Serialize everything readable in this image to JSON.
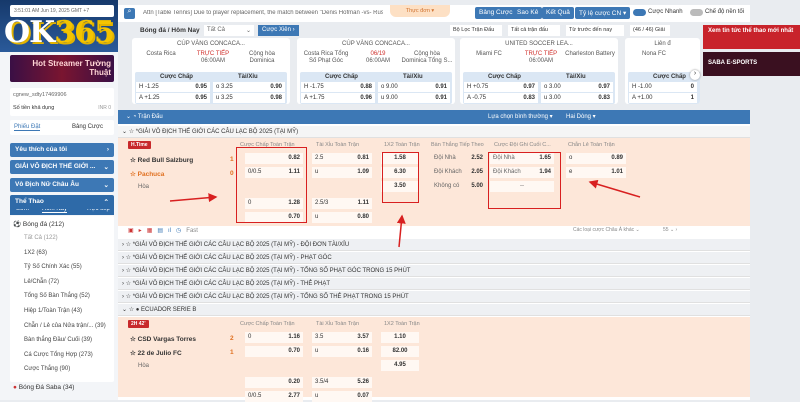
{
  "sidebar": {
    "clock": "3:51:01 AM Jun 19, 2025 GMT +7",
    "logo": "OK365",
    "banner": "Hot Streamer Tường Thuật",
    "username": "cgnew_sdty17469906",
    "balance_label": "Số tiền khả dụng",
    "balance_value": "INR 0",
    "tabs": [
      "Phiếu Đặt",
      "Bảng Cược"
    ],
    "blue_items": [
      "Yêu thích của tôi",
      "GIẢI VÔ ĐỊCH THẾ GIỚI ...",
      "Vô Địch Nữ Châu Âu",
      "Thể Thao"
    ],
    "sport_tabs": [
      "Sớm",
      "Hôm Nay",
      "Trực tiếp"
    ],
    "sport": "Bóng đá (212)",
    "items": [
      "Tất Cả (122)",
      "1X2 (63)",
      "Tỷ Số Chính Xác (55)",
      "Lẻ/Chẵn (72)",
      "Tổng Số Bàn Thắng (52)",
      "Hiệp 1/Toàn Trận (43)",
      "Chẵn / Lẻ của Nửa trận/... (39)",
      "Bàn thắng Đầu/ Cuối (39)",
      "Cá Cược Tổng Hợp (273)",
      "Cược Thắng (90)"
    ],
    "saba": "Bóng Đá Saba (34)"
  },
  "topbar": {
    "marquee": "Attn [Table Tennis] Due to player replacement, the match between \"Denis Hofman -vs- Ruslan Rekut\" [Liga Pro Men Singles -",
    "menu": "Thực đơn",
    "buttons": [
      "Bảng Cược",
      "Sao Kê",
      "Kết Quả",
      "Tỷ lệ cược CN"
    ],
    "toggle1": "Cược Nhanh",
    "toggle1_on": true,
    "toggle2": "Chế độ nền tối",
    "toggle2_on": false
  },
  "filterbar": {
    "breadcrumb": "Bóng đá / Hôm Nay",
    "select": "Tất Cả",
    "parlay": "Cược Xiên",
    "filters": [
      "Bộ Lọc Trận Đấu",
      "Tất cả trận đấu",
      "Từ trước đến nay"
    ],
    "count": "(46 / 46) Giải"
  },
  "cards": [
    {
      "league": "CÚP VÀNG CONCACA...",
      "home": "Costa Rica",
      "status": "TRỰC TIẾP",
      "time": "06:00AM",
      "away": "Cộng hòa Dominica",
      "h_label": "Cược Chấp",
      "ou_label": "Tài/Xỉu",
      "rows": [
        [
          "H -1.25",
          "0.95",
          "o 3.25",
          "0.90"
        ],
        [
          "A +1.25",
          "0.95",
          "u 3.25",
          "0.98"
        ]
      ]
    },
    {
      "league": "CÚP VÀNG CONCACA...",
      "home": "Costa Rica Tổng Số Phạt Góc",
      "status": "06/19",
      "time": "06:00AM",
      "away": "Cộng hòa Dominica Tổng S...",
      "h_label": "Cược Chấp",
      "ou_label": "Tài/Xỉu",
      "rows": [
        [
          "H -1.75",
          "0.88",
          "o 9.00",
          "0.91"
        ],
        [
          "A +1.75",
          "0.96",
          "u 9.00",
          "0.91"
        ]
      ]
    },
    {
      "league": "UNITED SOCCER LEA...",
      "home": "Miami FC",
      "status": "TRỰC TIẾP",
      "time": "06:00AM",
      "away": "Charleston Battery",
      "h_label": "Cược Chấp",
      "ou_label": "Tài/Xỉu",
      "rows": [
        [
          "H +0.75",
          "0.97",
          "o 3.00",
          "0.97"
        ],
        [
          "A -0.75",
          "0.83",
          "u 3.00",
          "0.83"
        ]
      ]
    },
    {
      "league": "Liên đ",
      "home": "Nona FC",
      "status": "",
      "time": "",
      "away": "",
      "h_label": "Cược Chấp",
      "ou_label": "",
      "rows": [
        [
          "H -1.00",
          "0",
          "",
          " "
        ],
        [
          "A +1.00",
          "1",
          "",
          " "
        ]
      ]
    }
  ],
  "bluebar": {
    "title": "Trận Đấu",
    "opt1": "Lựa chọn bình thường",
    "opt2": "Hai Dòng"
  },
  "headers": [
    "Cược Chấp Toàn Trận",
    "Tài Xỉu Toàn Trận",
    "1X2 Toàn Trận",
    "Bàn Thắng Tiếp Theo",
    "Cược Đội Ghi Cuối C...",
    "Chẵn Lẻ Toàn Trận"
  ],
  "league1": "*GIẢI VÔ ĐỊCH THẾ GIỚI CÁC CÂU LẠC BỘ 2025 (TẠI MỸ)",
  "match1": {
    "status": "H.Time",
    "home": "Red Bull Salzburg",
    "home_score": "1",
    "away": "Pachuca",
    "away_score": "0",
    "draw": "Hòa",
    "hdp": [
      [
        "",
        "0.82"
      ],
      [
        "0/0.5",
        "1.11"
      ],
      [
        "0",
        "1.28"
      ],
      [
        "",
        "0.70"
      ]
    ],
    "ou": [
      [
        "2.5",
        "0.81"
      ],
      [
        "u",
        "1.09"
      ],
      [
        "2.5/3",
        "1.11"
      ],
      [
        "u",
        "0.80"
      ]
    ],
    "x12": [
      "1.58",
      "6.30",
      "3.50"
    ],
    "next": [
      [
        "Đội Nhà",
        "2.52"
      ],
      [
        "Đội Khách",
        "2.05"
      ],
      [
        "Không có",
        "5.00"
      ]
    ],
    "last": [
      [
        "Đội Nhà",
        "1.65"
      ],
      [
        "Đội Khách",
        "1.94"
      ],
      [
        "--",
        ""
      ]
    ],
    "oe": [
      [
        "o",
        "0.89"
      ],
      [
        "e",
        "1.01"
      ]
    ],
    "fast": "Fast",
    "more": "Các loại cược Châu Á khác",
    "count": "55"
  },
  "collapsed": [
    "*GIẢI VÔ ĐỊCH THẾ GIỚI CÁC CÂU LẠC BỘ 2025 (TẠI MỸ) - ĐỘI ĐƠN TÀI/XỈU",
    "*GIẢI VÔ ĐỊCH THẾ GIỚI CÁC CÂU LẠC BỘ 2025 (TẠI MỸ) - PHẠT GÓC",
    "*GIẢI VÔ ĐỊCH THẾ GIỚI CÁC CÂU LẠC BỘ 2025 (TẠI MỸ) - TỔNG SỐ PHẠT GÓC TRONG 15 PHÚT",
    "*GIẢI VÔ ĐỊCH THẾ GIỚI CÁC CÂU LẠC BỘ 2025 (TẠI MỸ) - THẺ PHẠT",
    "*GIẢI VÔ ĐỊCH THẾ GIỚI CÁC CÂU LẠC BỘ 2025 (TẠI MỸ) - TỔNG SỐ THẺ PHẠT TRONG 15 PHÚT"
  ],
  "league2": "ECUADOR SERIE B",
  "match2": {
    "status": "2H 42'",
    "home": "CSD Vargas Torres",
    "home_score": "2",
    "away": "22 de Julio FC",
    "away_score": "1",
    "draw": "Hòa",
    "hdp": [
      [
        "0",
        "1.16"
      ],
      [
        "",
        "0.70"
      ],
      [
        "",
        "0.20"
      ],
      [
        "0/0.5",
        "2.77"
      ]
    ],
    "ou": [
      [
        "3.5",
        "3.57"
      ],
      [
        "u",
        "0.16"
      ],
      [
        "3.5/4",
        "5.26"
      ],
      [
        "u",
        "0.07"
      ]
    ],
    "x12": [
      "1.10",
      "82.00",
      "4.95"
    ]
  },
  "ads": [
    "Xem tin tức thể thao mới nhất",
    "SABA E-SPORTS"
  ],
  "colors": {
    "primary": "#3d78b5",
    "highlight": "#d82020",
    "live": "#d0312d",
    "row_bg": "#fde7d9"
  }
}
